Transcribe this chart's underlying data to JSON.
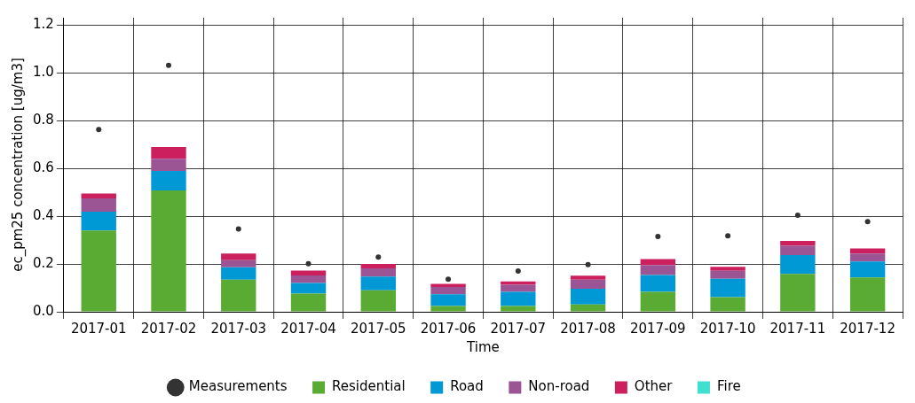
{
  "chart_data": {
    "type": "bar",
    "stacked": true,
    "xlabel": "Time",
    "ylabel": "ec_pm25 concentration [ug/m3]",
    "categories": [
      "2017-01",
      "2017-02",
      "2017-03",
      "2017-04",
      "2017-05",
      "2017-06",
      "2017-07",
      "2017-08",
      "2017-09",
      "2017-10",
      "2017-11",
      "2017-12"
    ],
    "series": [
      {
        "name": "Measurements",
        "type": "scatter",
        "marker": "circle",
        "color": "#333333",
        "values": [
          0.762,
          1.031,
          0.346,
          0.201,
          0.229,
          0.136,
          0.17,
          0.197,
          0.315,
          0.318,
          0.404,
          0.377
        ]
      },
      {
        "name": "Residential",
        "color": "#5aab34",
        "values": [
          0.34,
          0.508,
          0.134,
          0.076,
          0.09,
          0.024,
          0.024,
          0.031,
          0.083,
          0.061,
          0.158,
          0.144
        ]
      },
      {
        "name": "Road",
        "color": "#0099d6",
        "values": [
          0.079,
          0.081,
          0.052,
          0.044,
          0.057,
          0.049,
          0.059,
          0.065,
          0.071,
          0.077,
          0.079,
          0.066
        ]
      },
      {
        "name": "Non-road",
        "color": "#9b5595",
        "values": [
          0.055,
          0.051,
          0.03,
          0.032,
          0.035,
          0.031,
          0.03,
          0.038,
          0.041,
          0.033,
          0.039,
          0.034
        ]
      },
      {
        "name": "Other",
        "color": "#cc1f5d",
        "values": [
          0.021,
          0.049,
          0.028,
          0.02,
          0.018,
          0.013,
          0.014,
          0.017,
          0.025,
          0.017,
          0.02,
          0.021
        ]
      },
      {
        "name": "Fire",
        "color": "#40e0d0",
        "values": [
          0,
          0,
          0,
          0,
          0,
          0,
          0,
          0,
          0,
          0,
          0,
          0
        ]
      }
    ],
    "ylim": [
      0,
      1.23
    ],
    "yticks": [
      {
        "value": 0,
        "label": "0.0"
      },
      {
        "value": 0.2,
        "label": "0.2"
      },
      {
        "value": 0.4,
        "label": "0.4"
      },
      {
        "value": 0.6,
        "label": "0.6"
      },
      {
        "value": 0.8,
        "label": "0.8"
      },
      {
        "value": 1.0,
        "label": "1.0"
      },
      {
        "value": 1.2,
        "label": "1.2"
      }
    ],
    "grid": true,
    "legend": "bottom"
  }
}
